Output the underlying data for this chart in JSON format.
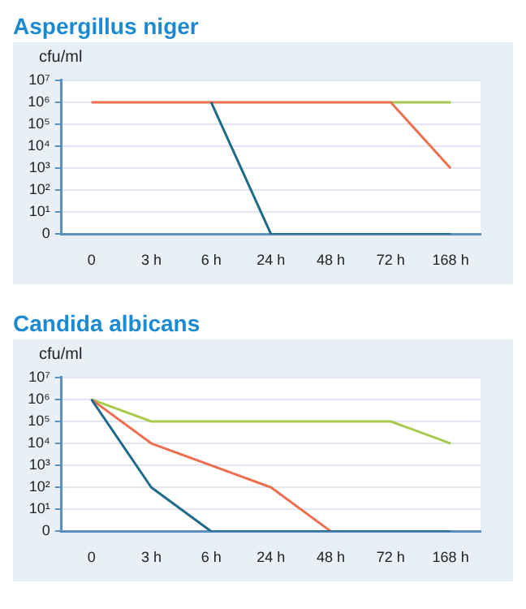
{
  "chart_data": [
    {
      "type": "line",
      "title": "Aspergillus niger",
      "ylabel": "cfu/ml",
      "categories": [
        "0",
        "3 h",
        "6 h",
        "24 h",
        "48 h",
        "72 h",
        "168 h"
      ],
      "log": true,
      "ylim": [
        0,
        10000000
      ],
      "yticks": [
        0,
        {
          "value": 10,
          "label": "10¹"
        },
        {
          "value": 100,
          "label": "10²"
        },
        {
          "value": 1000,
          "label": "10³"
        },
        {
          "value": 10000,
          "label": "10⁴"
        },
        {
          "value": 100000,
          "label": "10⁵"
        },
        {
          "value": 1000000,
          "label": "10⁶"
        },
        {
          "value": 10000000,
          "label": "10⁷"
        }
      ],
      "grid": "y",
      "legend": false,
      "marker": "none",
      "line_style": "solid",
      "series": [
        {
          "color": "#a8c94c",
          "values": [
            null,
            null,
            null,
            null,
            null,
            1000000,
            1000000
          ]
        },
        {
          "color": "#ee6f4f",
          "values": [
            1000000,
            1000000,
            1000000,
            1000000,
            1000000,
            1000000,
            1000
          ]
        },
        {
          "color": "#1f6a88",
          "values": [
            null,
            null,
            1000000,
            1,
            1,
            1,
            1
          ]
        }
      ]
    },
    {
      "type": "line",
      "title": "Candida albicans",
      "ylabel": "cfu/ml",
      "categories": [
        "0",
        "3 h",
        "6 h",
        "24 h",
        "48 h",
        "72 h",
        "168 h"
      ],
      "log": true,
      "ylim": [
        0,
        10000000
      ],
      "yticks": [
        0,
        {
          "value": 10,
          "label": "10¹"
        },
        {
          "value": 100,
          "label": "10²"
        },
        {
          "value": 1000,
          "label": "10³"
        },
        {
          "value": 10000,
          "label": "10⁴"
        },
        {
          "value": 100000,
          "label": "10⁵"
        },
        {
          "value": 1000000,
          "label": "10⁶"
        },
        {
          "value": 10000000,
          "label": "10⁷"
        }
      ],
      "grid": "y",
      "legend": false,
      "marker": "none",
      "line_style": "solid",
      "series": [
        {
          "color": "#a8c94c",
          "values": [
            1000000,
            100000,
            100000,
            100000,
            100000,
            100000,
            10000
          ]
        },
        {
          "color": "#ee6f4f",
          "values": [
            1000000,
            10000,
            1000,
            100,
            1,
            null,
            null
          ]
        },
        {
          "color": "#1f6a88",
          "values": [
            1000000,
            100,
            1,
            1,
            1,
            1,
            1
          ]
        }
      ]
    }
  ]
}
